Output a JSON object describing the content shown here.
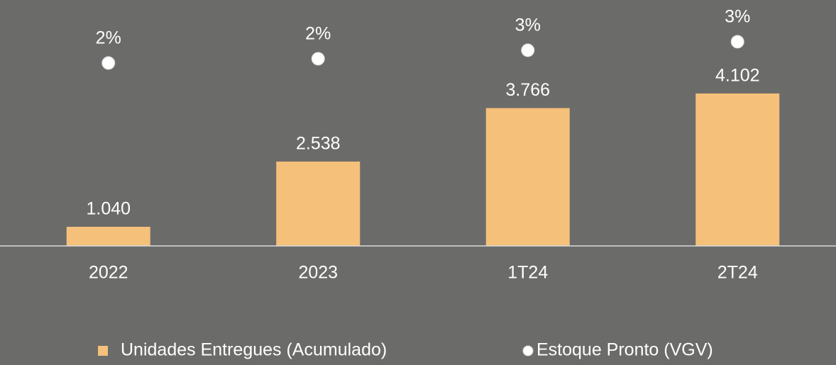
{
  "chart_data": {
    "type": "bar",
    "categories": [
      "2022",
      "2023",
      "1T24",
      "2T24"
    ],
    "series": [
      {
        "name": "Unidades Entregues (Acumulado)",
        "type": "bar",
        "color": "#f4c07a",
        "values": [
          1040,
          2538,
          3766,
          4102
        ],
        "value_labels": [
          "1.040",
          "2.538",
          "3.766",
          "4.102"
        ]
      },
      {
        "name": "Estoque Pronto (VGV)",
        "type": "scatter",
        "axis": "y2",
        "color": "#ffffff",
        "values": [
          2.0,
          2.2,
          2.6,
          3.0
        ],
        "value_labels": [
          "2%",
          "2%",
          "3%",
          "3%"
        ]
      }
    ],
    "ylim": [
      600,
      5500
    ],
    "y2lim": [
      -6.6,
      3.43
    ]
  }
}
